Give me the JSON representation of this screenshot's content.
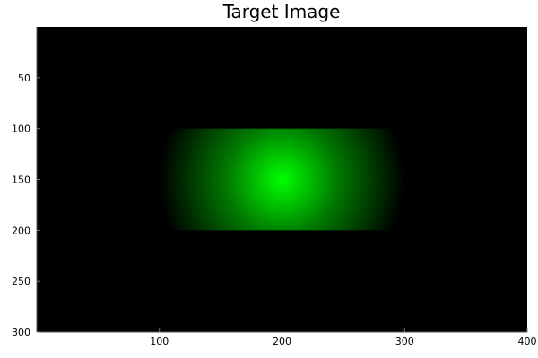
{
  "chart_data": {
    "type": "heatmap",
    "title": "Target Image",
    "xlabel": "",
    "ylabel": "",
    "xlim": [
      0,
      400
    ],
    "ylim": [
      0,
      300
    ],
    "y_axis_inverted": true,
    "grid": false,
    "legend": "none",
    "x_ticks": [
      "100",
      "200",
      "300",
      "400"
    ],
    "y_ticks": [
      "50",
      "100",
      "150",
      "200",
      "250",
      "300"
    ],
    "x_tick_values": [
      100,
      200,
      300,
      400
    ],
    "y_tick_values": [
      50,
      100,
      150,
      200,
      250,
      300
    ],
    "background_color": "#000000",
    "highlight_region": {
      "x_range": [
        100,
        300
      ],
      "y_range": [
        100,
        200
      ],
      "center": [
        200,
        150
      ],
      "peak_color": "#00ff00",
      "edge_color": "#000000"
    }
  }
}
